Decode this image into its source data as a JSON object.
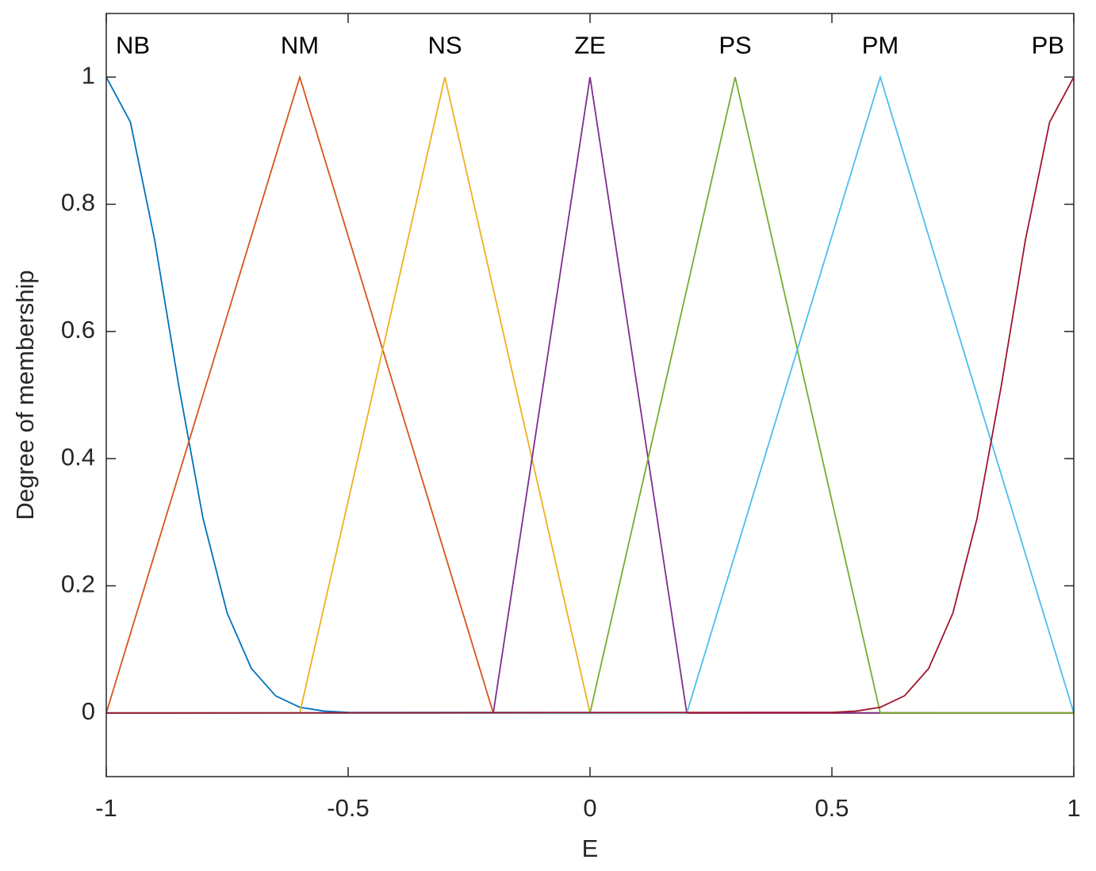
{
  "chart_data": {
    "type": "line",
    "x_label": "E",
    "y_label": "Degree of membership",
    "xlim": [
      -1,
      1
    ],
    "ylim": [
      -0.1,
      1.1
    ],
    "xticks": [
      -1,
      -0.5,
      0,
      0.5,
      1
    ],
    "yticks": [
      0,
      0.2,
      0.4,
      0.6,
      0.8,
      1
    ],
    "grid": false,
    "box": true,
    "series": [
      {
        "name": "NB",
        "color": "#0072BD",
        "x": [
          -1,
          -0.95,
          -0.9,
          -0.85,
          -0.8,
          -0.75,
          -0.7,
          -0.65,
          -0.6,
          -0.55,
          -0.5,
          1
        ],
        "values": [
          1,
          0.929,
          0.744,
          0.514,
          0.306,
          0.157,
          0.07,
          0.027,
          0.009,
          0.003,
          0.001,
          0
        ]
      },
      {
        "name": "NM",
        "color": "#D95319",
        "x": [
          -1,
          -0.6,
          -0.2,
          1
        ],
        "values": [
          0,
          1,
          0,
          0
        ]
      },
      {
        "name": "NS",
        "color": "#EDB120",
        "x": [
          -1,
          -0.6,
          -0.3,
          0,
          1
        ],
        "values": [
          0,
          0,
          1,
          0,
          0
        ]
      },
      {
        "name": "ZE",
        "color": "#7E2F8E",
        "x": [
          -1,
          -0.2,
          0,
          0.2,
          1
        ],
        "values": [
          0,
          0,
          1,
          0,
          0
        ]
      },
      {
        "name": "PS",
        "color": "#77AC30",
        "x": [
          -1,
          0,
          0.3,
          0.6,
          1
        ],
        "values": [
          0,
          0,
          1,
          0,
          0
        ]
      },
      {
        "name": "PM",
        "color": "#4DBEEE",
        "x": [
          -1,
          0.2,
          0.6,
          1
        ],
        "values": [
          0,
          0,
          1,
          0
        ]
      },
      {
        "name": "PB",
        "color": "#A2142F",
        "x": [
          -1,
          0.5,
          0.55,
          0.6,
          0.65,
          0.7,
          0.75,
          0.8,
          0.85,
          0.9,
          0.95,
          1
        ],
        "values": [
          0,
          0.001,
          0.003,
          0.009,
          0.027,
          0.07,
          0.157,
          0.306,
          0.514,
          0.744,
          0.929,
          1
        ]
      }
    ]
  }
}
